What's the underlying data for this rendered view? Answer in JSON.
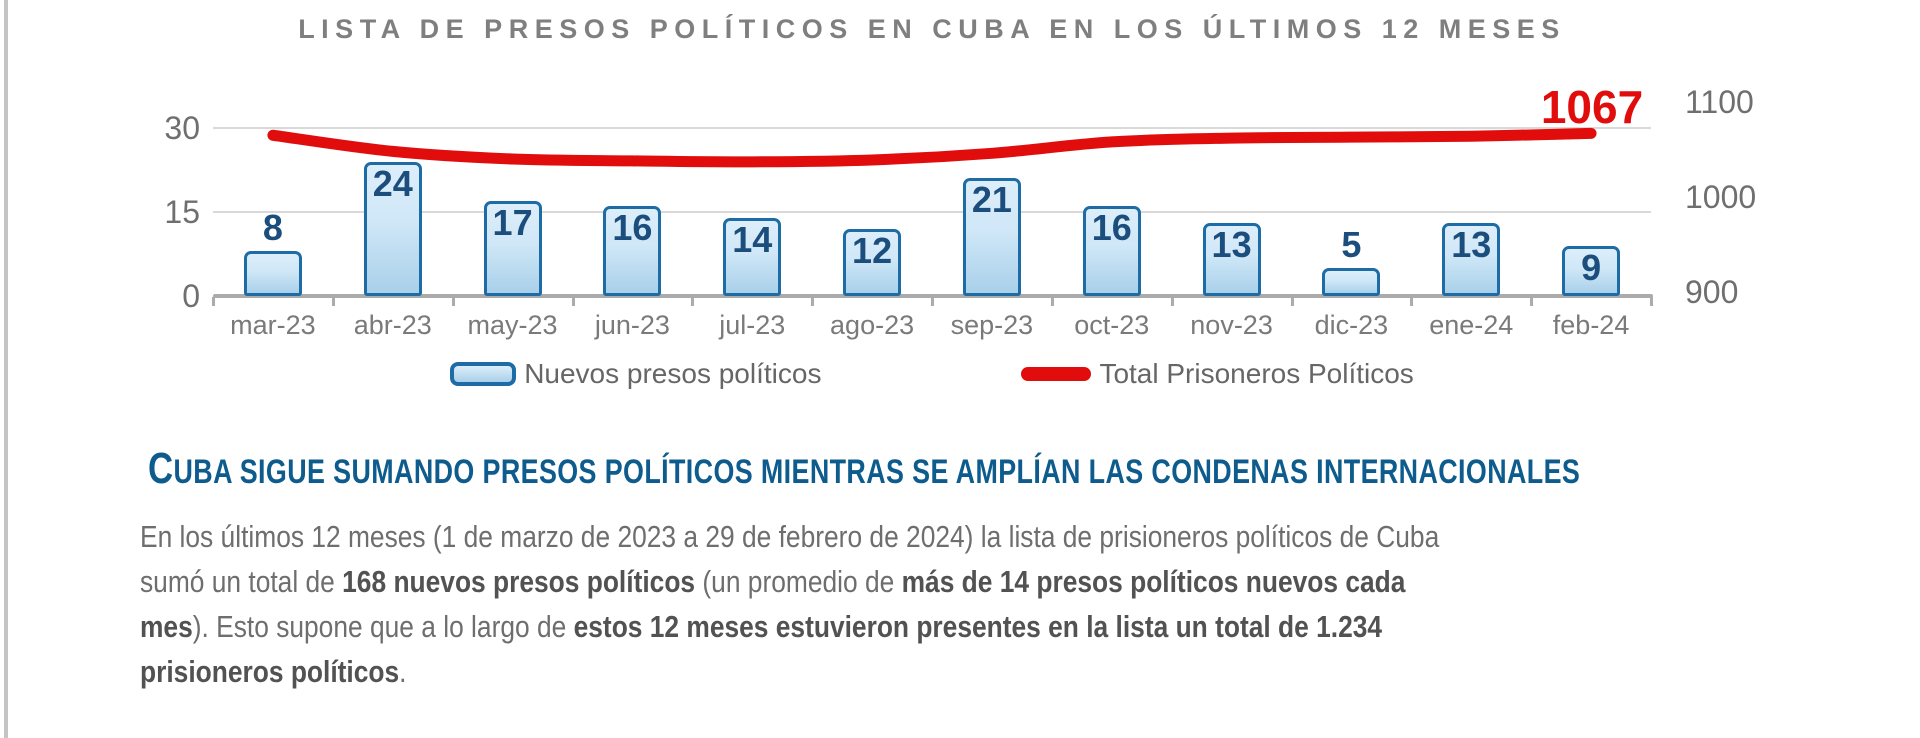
{
  "chart_data": {
    "type": "combo",
    "title": "LISTA DE PRESOS POLÍTICOS EN CUBA EN LOS ÚLTIMOS 12 MESES",
    "categories": [
      "mar-23",
      "abr-23",
      "may-23",
      "jun-23",
      "jul-23",
      "ago-23",
      "sep-23",
      "oct-23",
      "nov-23",
      "dic-23",
      "ene-24",
      "feb-24"
    ],
    "series": [
      {
        "name": "Nuevos presos políticos",
        "type": "bar",
        "axis": "left",
        "values": [
          8,
          24,
          17,
          16,
          14,
          12,
          21,
          16,
          13,
          5,
          13,
          9
        ],
        "label_positions": [
          "above",
          "inside",
          "inside",
          "inside",
          "inside",
          "inside",
          "inside",
          "inside",
          "inside",
          "above",
          "inside",
          "inside"
        ]
      },
      {
        "name": "Total Prisoneros Políticos",
        "type": "line",
        "axis": "right",
        "values": [
          1065,
          1048,
          1040,
          1038,
          1037,
          1039,
          1046,
          1058,
          1062,
          1063,
          1064,
          1067
        ],
        "end_label": "1067"
      }
    ],
    "left_axis": {
      "range": [
        0,
        30
      ],
      "ticks": [
        0,
        15,
        30
      ]
    },
    "right_axis": {
      "range": [
        900,
        1100
      ],
      "ticks": [
        900,
        1000,
        1100
      ]
    },
    "grid": true,
    "legend_position": "bottom"
  },
  "heading": {
    "lead": "C",
    "rest": "UBA SIGUE SUMANDO PRESOS POLÍTICOS MIENTRAS SE AMPLÍAN LAS CONDENAS INTERNACIONALES"
  },
  "paragraph": {
    "runs": [
      {
        "t": "En los últimos 12 meses (1 de marzo de 2023 a 29 de febrero de 2024) la lista de prisioneros políticos de Cuba",
        "b": false
      },
      {
        "br": true
      },
      {
        "t": "sumó un total de ",
        "b": false
      },
      {
        "t": "168 nuevos presos políticos",
        "b": true
      },
      {
        "t": " (un promedio de ",
        "b": false
      },
      {
        "t": "más de 14 presos políticos nuevos cada",
        "b": true
      },
      {
        "br": true
      },
      {
        "t": "mes",
        "b": true
      },
      {
        "t": "). Esto supone que a lo largo de ",
        "b": false
      },
      {
        "t": "estos 12 meses estuvieron presentes en la lista un total de 1.234",
        "b": true
      },
      {
        "br": true
      },
      {
        "t": "prisioneros políticos",
        "b": true
      },
      {
        "t": ".",
        "b": false
      }
    ]
  },
  "colors": {
    "bar_border": "#1d6ca5",
    "bar_fill_top": "#ddeefa",
    "bar_fill_bottom": "#a9d0ea",
    "bar_label": "#1c4e7d",
    "line": "#e10d0d",
    "end_label": "#e10d0d",
    "title": "#7f7f7f",
    "axis_text": "#6f6f6f",
    "heading": "#0e5c8e",
    "body_text": "#6e6e6e",
    "body_bold": "#525252",
    "grid": "#d9d9d9",
    "axis_line": "#ababab",
    "border_rule": "#c4c4c4"
  }
}
